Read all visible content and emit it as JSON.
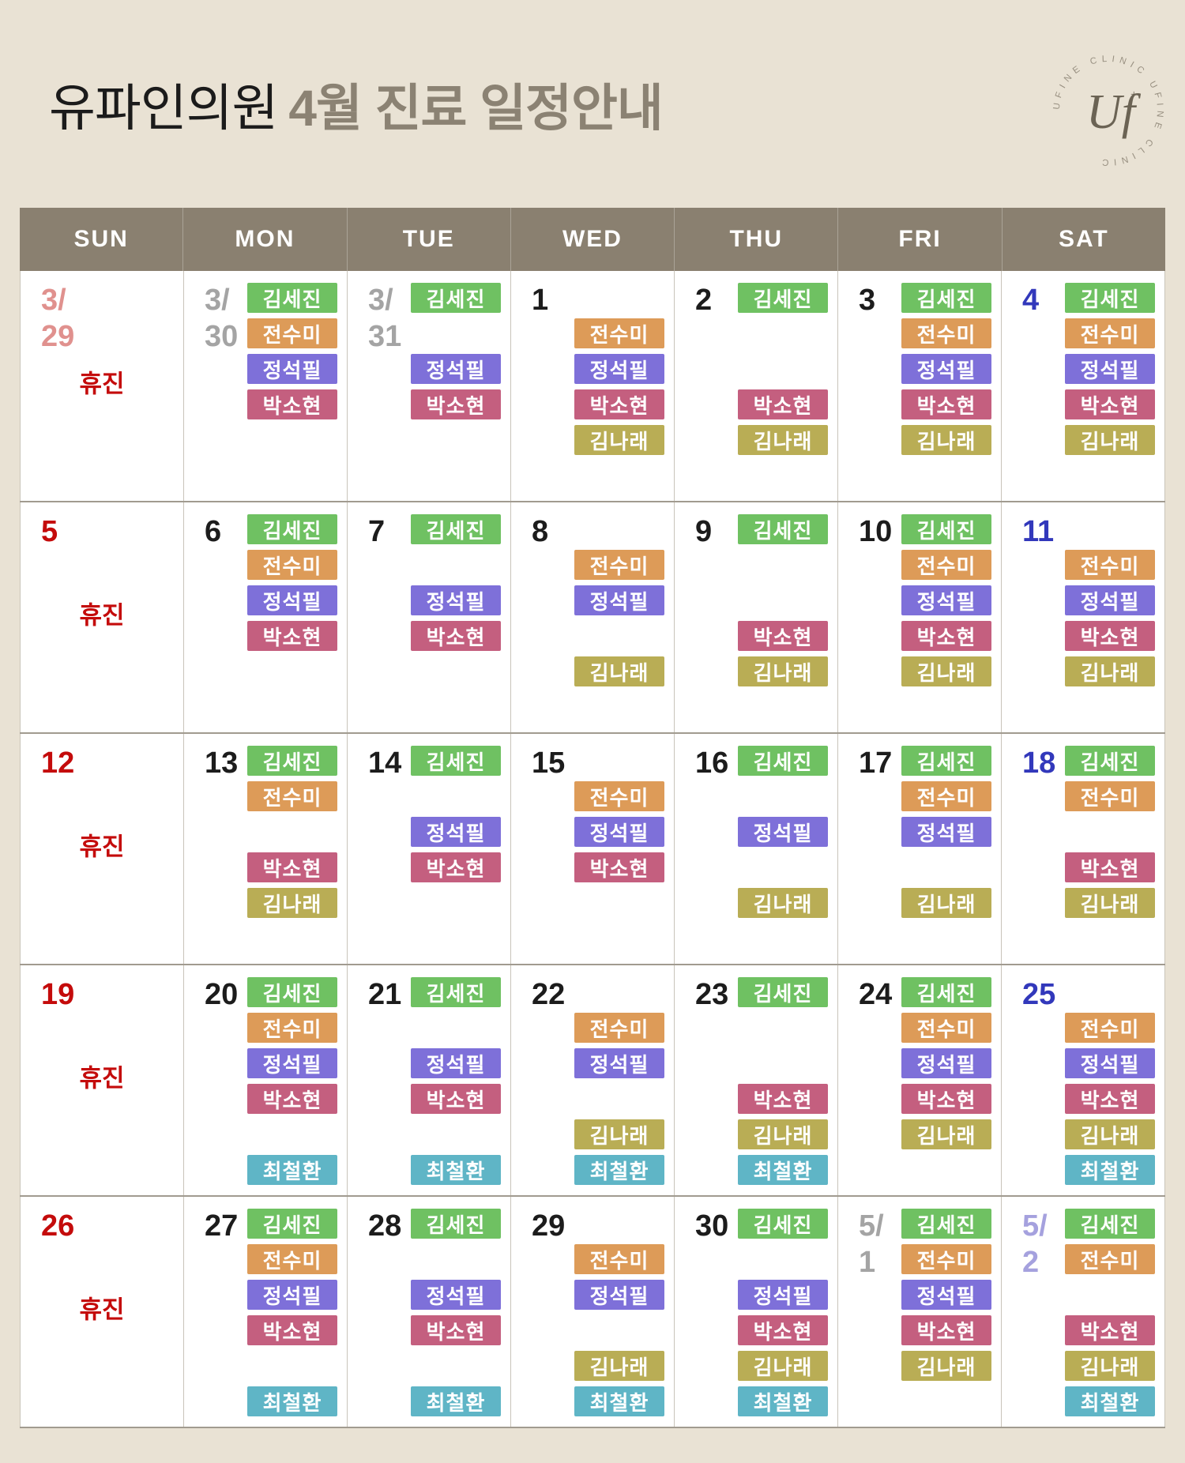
{
  "palette": {
    "page_bg": "#e9e2d4",
    "header_bg": "#8a8070",
    "accent": "#8b8273",
    "row_border": "#a19b90",
    "col_border": "#c9c4ba",
    "closed_red": "#c40b0b"
  },
  "title": {
    "clinic": "유파인의원",
    "schedule": "4월 진료 일정안내"
  },
  "logo": {
    "ring_text": "UFINE CLINIC",
    "monogram": "Uf",
    "sparkle": "+"
  },
  "weekdays": [
    "SUN",
    "MON",
    "TUE",
    "WED",
    "THU",
    "FRI",
    "SAT"
  ],
  "closed_label": "휴진",
  "doctors": [
    {
      "id": "kim-sejin",
      "name": "김세진",
      "color": "#6fc162"
    },
    {
      "id": "jeon-sumi",
      "name": "전수미",
      "color": "#dd9b58"
    },
    {
      "id": "jung-seokpil",
      "name": "정석필",
      "color": "#7e70d9"
    },
    {
      "id": "park-sohyun",
      "name": "박소현",
      "color": "#c45f7f"
    },
    {
      "id": "kim-narae",
      "name": "김나래",
      "color": "#b9ad55"
    },
    {
      "id": "choi-cheolhwan",
      "name": "최철환",
      "color": "#5fb5c6"
    }
  ],
  "date_colors": {
    "weekday": "#1c1c1c",
    "sunday": "#c40b0b",
    "saturday": "#3238bb",
    "adjacent_gray": "#a4a4a4",
    "adjacent_pink": "#e0918e",
    "adjacent_lavender": "#a5a1de"
  },
  "weeks": [
    [
      {
        "date": "3/\n29",
        "tone": "adjacent_pink",
        "closed": true,
        "slots": []
      },
      {
        "date": "3/\n30",
        "tone": "adjacent_gray",
        "closed": false,
        "slots": [
          0,
          1,
          2,
          3
        ]
      },
      {
        "date": "3/\n31",
        "tone": "adjacent_gray",
        "closed": false,
        "slots": [
          0,
          2,
          3
        ]
      },
      {
        "date": "1",
        "tone": "weekday",
        "closed": false,
        "slots": [
          1,
          2,
          3,
          4
        ]
      },
      {
        "date": "2",
        "tone": "weekday",
        "closed": false,
        "slots": [
          0,
          3,
          4
        ]
      },
      {
        "date": "3",
        "tone": "weekday",
        "closed": false,
        "slots": [
          0,
          1,
          2,
          3,
          4
        ]
      },
      {
        "date": "4",
        "tone": "saturday",
        "closed": false,
        "slots": [
          0,
          1,
          2,
          3,
          4
        ]
      }
    ],
    [
      {
        "date": "5",
        "tone": "sunday",
        "closed": true,
        "slots": []
      },
      {
        "date": "6",
        "tone": "weekday",
        "closed": false,
        "slots": [
          0,
          1,
          2,
          3
        ]
      },
      {
        "date": "7",
        "tone": "weekday",
        "closed": false,
        "slots": [
          0,
          2,
          3
        ]
      },
      {
        "date": "8",
        "tone": "weekday",
        "closed": false,
        "slots": [
          1,
          2,
          4
        ]
      },
      {
        "date": "9",
        "tone": "weekday",
        "closed": false,
        "slots": [
          0,
          3,
          4
        ]
      },
      {
        "date": "10",
        "tone": "weekday",
        "closed": false,
        "slots": [
          0,
          1,
          2,
          3,
          4
        ]
      },
      {
        "date": "11",
        "tone": "saturday",
        "closed": false,
        "slots": [
          1,
          2,
          3,
          4
        ]
      }
    ],
    [
      {
        "date": "12",
        "tone": "sunday",
        "closed": true,
        "slots": []
      },
      {
        "date": "13",
        "tone": "weekday",
        "closed": false,
        "slots": [
          0,
          1,
          3,
          4
        ]
      },
      {
        "date": "14",
        "tone": "weekday",
        "closed": false,
        "slots": [
          0,
          2,
          3
        ]
      },
      {
        "date": "15",
        "tone": "weekday",
        "closed": false,
        "slots": [
          1,
          2,
          3
        ]
      },
      {
        "date": "16",
        "tone": "weekday",
        "closed": false,
        "slots": [
          0,
          2,
          4
        ]
      },
      {
        "date": "17",
        "tone": "weekday",
        "closed": false,
        "slots": [
          0,
          1,
          2,
          4
        ]
      },
      {
        "date": "18",
        "tone": "saturday",
        "closed": false,
        "slots": [
          0,
          1,
          3,
          4
        ]
      }
    ],
    [
      {
        "date": "19",
        "tone": "sunday",
        "closed": true,
        "slots": []
      },
      {
        "date": "20",
        "tone": "weekday",
        "closed": false,
        "slots": [
          0,
          1,
          2,
          3,
          5
        ]
      },
      {
        "date": "21",
        "tone": "weekday",
        "closed": false,
        "slots": [
          0,
          2,
          3,
          5
        ]
      },
      {
        "date": "22",
        "tone": "weekday",
        "closed": false,
        "slots": [
          1,
          2,
          4,
          5
        ]
      },
      {
        "date": "23",
        "tone": "weekday",
        "closed": false,
        "slots": [
          0,
          3,
          4,
          5
        ]
      },
      {
        "date": "24",
        "tone": "weekday",
        "closed": false,
        "slots": [
          0,
          1,
          2,
          3,
          4
        ]
      },
      {
        "date": "25",
        "tone": "saturday",
        "closed": false,
        "slots": [
          1,
          2,
          3,
          4,
          5
        ]
      }
    ],
    [
      {
        "date": "26",
        "tone": "sunday",
        "closed": true,
        "slots": []
      },
      {
        "date": "27",
        "tone": "weekday",
        "closed": false,
        "slots": [
          0,
          1,
          2,
          3,
          5
        ]
      },
      {
        "date": "28",
        "tone": "weekday",
        "closed": false,
        "slots": [
          0,
          2,
          3,
          5
        ]
      },
      {
        "date": "29",
        "tone": "weekday",
        "closed": false,
        "slots": [
          1,
          2,
          4,
          5
        ]
      },
      {
        "date": "30",
        "tone": "weekday",
        "closed": false,
        "slots": [
          0,
          2,
          3,
          4,
          5
        ]
      },
      {
        "date": "5/\n1",
        "tone": "adjacent_gray",
        "closed": false,
        "slots": [
          0,
          1,
          2,
          3,
          4
        ]
      },
      {
        "date": "5/\n2",
        "tone": "adjacent_lavender",
        "closed": false,
        "slots": [
          0,
          1,
          3,
          4,
          5
        ]
      }
    ]
  ]
}
